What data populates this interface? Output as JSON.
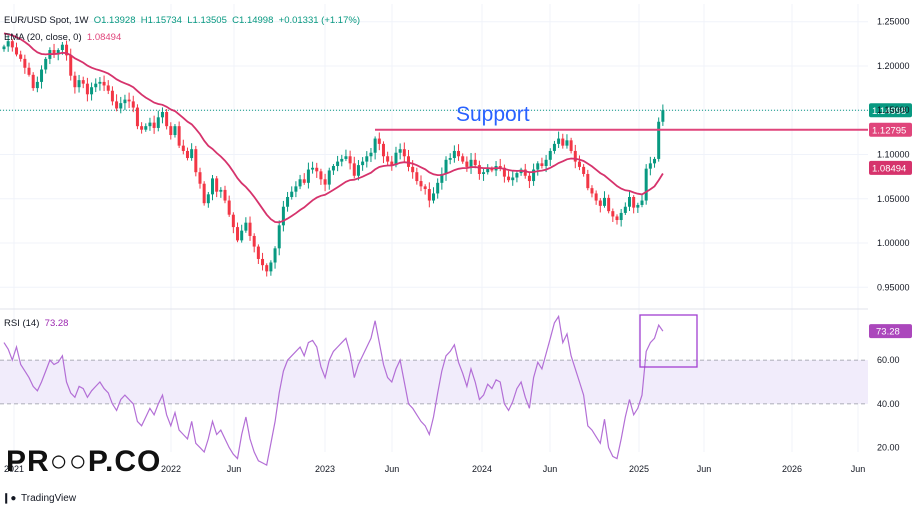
{
  "header": {
    "symbol": "EUR/USD Spot, 1W",
    "open": "O1.13928",
    "high": "H1.15734",
    "low": "L1.13505",
    "close": "C1.14998",
    "change": "+0.01331 (+1.17%)",
    "ema_label": "EMA (20, close, 0)",
    "ema_value": "1.08494",
    "rsi_label": "RSI (14)",
    "rsi_value": "73.28"
  },
  "annotation": {
    "text": "Support",
    "color": "#2962ff"
  },
  "branding": {
    "logo_text": "PR○○P.CO",
    "footer": "TradingView",
    "footer_icon": "tradingview-logo-icon"
  },
  "colors": {
    "up": "#089981",
    "down": "#f23645",
    "ema": "#d6336c",
    "support": "#e0457b",
    "rsi": "#b36fd6",
    "rsi_band": "#f1ecfb",
    "box": "#a23fd1"
  },
  "chart_data": [
    {
      "type": "candlestick",
      "title": "EUR/USD Spot, 1W",
      "x_ticks": [
        "2021",
        "2022",
        "Jun",
        "2023",
        "Jun",
        "2024",
        "Jun",
        "2025",
        "Jun",
        "2026",
        "Jun"
      ],
      "y_ticks": [
        "1.25000",
        "1.20000",
        "1.15000",
        "1.10000",
        "1.05000",
        "1.00000",
        "0.95000"
      ],
      "ylim": [
        0.93,
        1.27
      ],
      "price_labels": [
        {
          "label": "1.14998",
          "value": 1.14998,
          "color": "#089981"
        },
        {
          "label": "1.12795",
          "value": 1.12795,
          "color": "#e0457b"
        },
        {
          "label": "1.08494",
          "value": 1.08494,
          "color": "#d6336c"
        }
      ],
      "support_level": 1.12795,
      "close_series": [
        1.222,
        1.228,
        1.221,
        1.213,
        1.208,
        1.198,
        1.19,
        1.175,
        1.182,
        1.196,
        1.208,
        1.218,
        1.213,
        1.218,
        1.224,
        1.212,
        1.189,
        1.176,
        1.184,
        1.18,
        1.168,
        1.176,
        1.18,
        1.182,
        1.178,
        1.172,
        1.16,
        1.152,
        1.158,
        1.162,
        1.16,
        1.153,
        1.132,
        1.128,
        1.132,
        1.136,
        1.13,
        1.142,
        1.148,
        1.132,
        1.122,
        1.132,
        1.11,
        1.104,
        1.096,
        1.106,
        1.08,
        1.067,
        1.045,
        1.055,
        1.073,
        1.058,
        1.06,
        1.048,
        1.032,
        1.018,
        1.003,
        1.014,
        1.023,
        1.008,
        0.996,
        0.982,
        0.975,
        0.968,
        0.978,
        0.994,
        1.02,
        1.041,
        1.052,
        1.058,
        1.064,
        1.072,
        1.068,
        1.083,
        1.085,
        1.081,
        1.072,
        1.066,
        1.082,
        1.087,
        1.092,
        1.095,
        1.098,
        1.09,
        1.076,
        1.088,
        1.092,
        1.098,
        1.102,
        1.118,
        1.112,
        1.098,
        1.092,
        1.088,
        1.102,
        1.106,
        1.098,
        1.086,
        1.08,
        1.07,
        1.064,
        1.061,
        1.048,
        1.056,
        1.068,
        1.078,
        1.094,
        1.096,
        1.104,
        1.098,
        1.092,
        1.086,
        1.094,
        1.088,
        1.078,
        1.08,
        1.084,
        1.082,
        1.087,
        1.085,
        1.075,
        1.071,
        1.074,
        1.079,
        1.083,
        1.076,
        1.07,
        1.083,
        1.09,
        1.087,
        1.094,
        1.104,
        1.112,
        1.118,
        1.11,
        1.116,
        1.104,
        1.092,
        1.086,
        1.078,
        1.062,
        1.056,
        1.048,
        1.042,
        1.051,
        1.036,
        1.03,
        1.026,
        1.034,
        1.041,
        1.052,
        1.04,
        1.043,
        1.048,
        1.084,
        1.09,
        1.095,
        1.137,
        1.15
      ],
      "ema": {
        "name": "EMA (20, close, 0)",
        "last": 1.08494
      },
      "annotations": [
        "Support"
      ]
    },
    {
      "type": "line",
      "title": "RSI (14)",
      "y_ticks": [
        "60.00",
        "40.00",
        "20.00"
      ],
      "ylim": [
        18,
        82
      ],
      "band": [
        40,
        60
      ],
      "last_label": "73.28",
      "values": [
        68,
        65,
        60,
        66,
        58,
        55,
        52,
        48,
        46,
        50,
        55,
        60,
        58,
        59,
        62,
        50,
        45,
        43,
        48,
        47,
        43,
        46,
        48,
        50,
        47,
        45,
        40,
        37,
        42,
        44,
        42,
        40,
        32,
        30,
        34,
        38,
        35,
        40,
        44,
        35,
        30,
        36,
        28,
        26,
        24,
        32,
        22,
        20,
        18,
        24,
        32,
        26,
        28,
        24,
        20,
        17,
        15,
        26,
        34,
        24,
        18,
        14,
        13,
        12,
        22,
        32,
        45,
        55,
        60,
        62,
        64,
        66,
        62,
        68,
        69,
        66,
        57,
        52,
        60,
        64,
        66,
        68,
        70,
        63,
        52,
        58,
        62,
        66,
        70,
        78,
        68,
        58,
        52,
        50,
        56,
        60,
        50,
        40,
        38,
        35,
        32,
        30,
        26,
        34,
        45,
        55,
        62,
        64,
        67,
        59,
        54,
        48,
        56,
        50,
        42,
        44,
        49,
        47,
        51,
        50,
        40,
        37,
        41,
        47,
        50,
        43,
        38,
        52,
        59,
        56,
        63,
        70,
        77,
        80,
        68,
        72,
        62,
        56,
        50,
        44,
        30,
        28,
        25,
        22,
        33,
        20,
        16,
        15,
        24,
        34,
        42,
        35,
        38,
        44,
        64,
        68,
        70,
        76,
        73.28
      ]
    }
  ]
}
